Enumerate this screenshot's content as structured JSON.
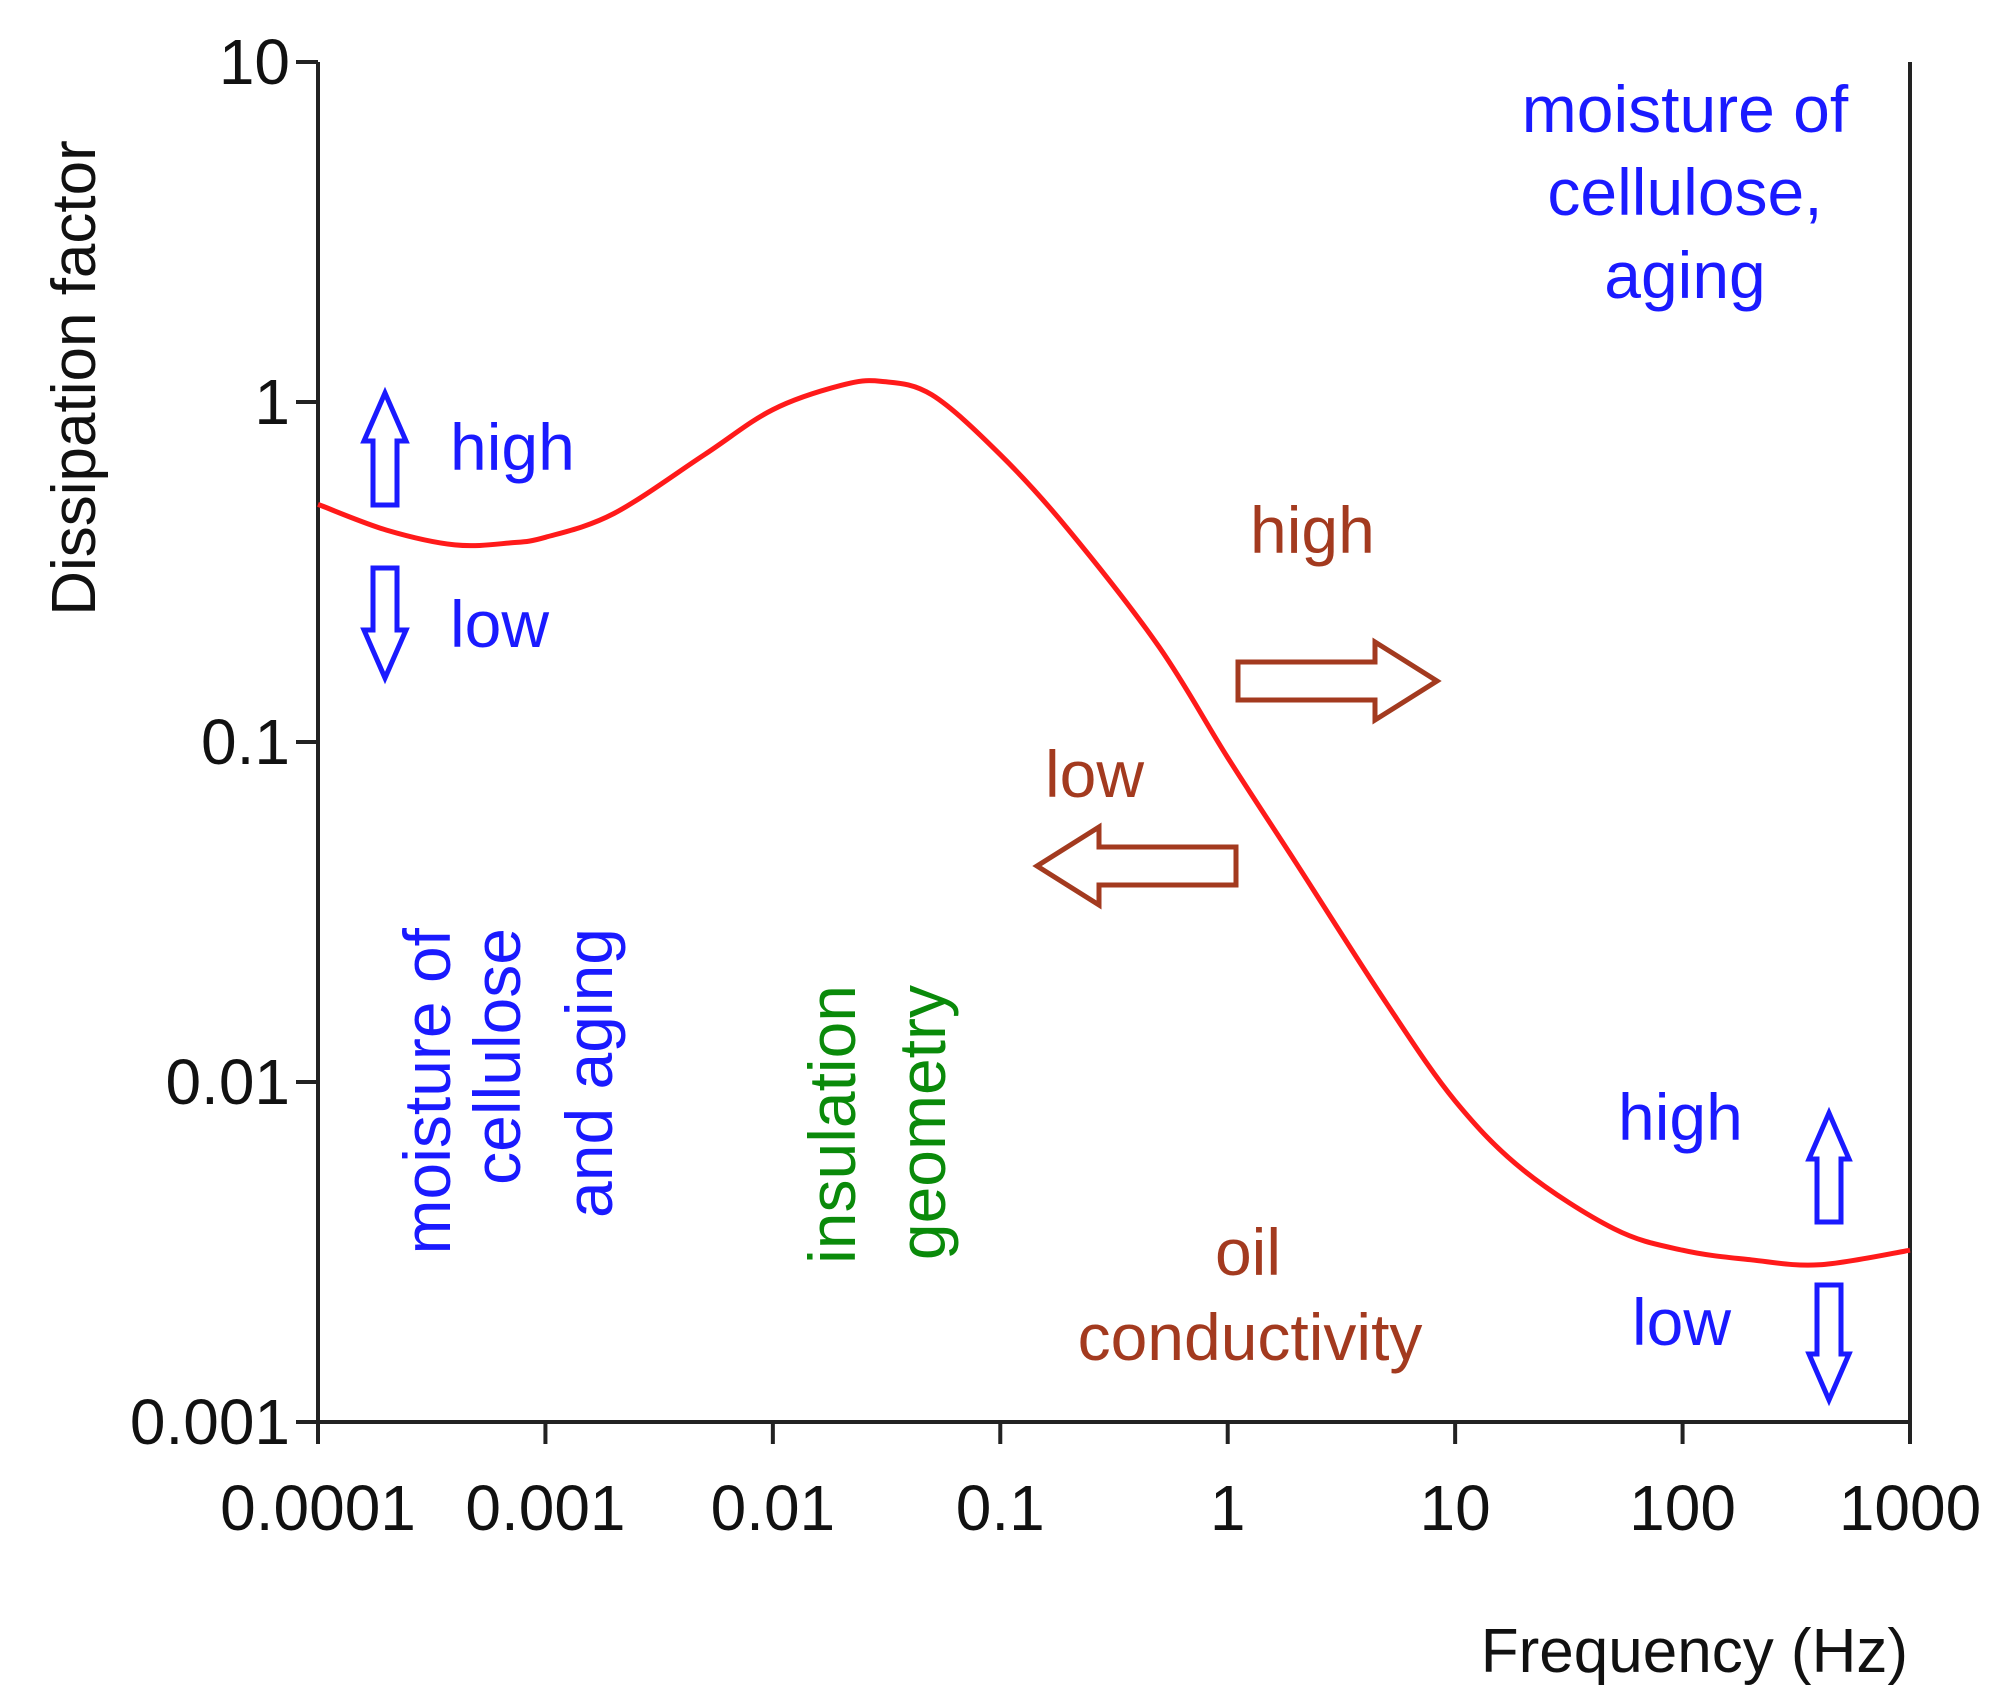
{
  "chart_data": {
    "type": "line",
    "title": "",
    "xlabel": "Frequency (Hz)",
    "ylabel": "Dissipation factor",
    "xscale": "log",
    "yscale": "log",
    "xlim": [
      0.0001,
      1000
    ],
    "ylim": [
      0.001,
      10
    ],
    "x_tick_labels": [
      "0.0001",
      "0.001",
      "0.01",
      "0.1",
      "1",
      "10",
      "100",
      "1000"
    ],
    "y_tick_labels": [
      "0.001",
      "0.01",
      "0.1",
      "1",
      "10"
    ],
    "grid": false,
    "legend": "none",
    "series": [
      {
        "name": "Dissipation factor",
        "color": "#ff1a1a",
        "x": [
          0.0001,
          0.0002,
          0.0004,
          0.0007,
          0.001,
          0.002,
          0.005,
          0.01,
          0.02,
          0.03,
          0.05,
          0.1,
          0.2,
          0.5,
          1,
          2,
          5,
          10,
          20,
          50,
          100,
          200,
          400,
          1000
        ],
        "y": [
          0.5,
          0.42,
          0.38,
          0.385,
          0.4,
          0.47,
          0.7,
          0.95,
          1.12,
          1.15,
          1.05,
          0.7,
          0.42,
          0.19,
          0.09,
          0.044,
          0.017,
          0.0088,
          0.0055,
          0.0037,
          0.0032,
          0.003,
          0.0029,
          0.0032
        ]
      }
    ],
    "annotations": [
      {
        "id": "top-right",
        "lines": [
          "moisture of",
          "cellulose,",
          "aging"
        ],
        "color": "#1a1aff"
      },
      {
        "id": "left-high",
        "text": "high",
        "color": "#1a1aff"
      },
      {
        "id": "left-low",
        "text": "low",
        "color": "#1a1aff"
      },
      {
        "id": "mid-high",
        "text": "high",
        "color": "#a33a1f"
      },
      {
        "id": "mid-low",
        "text": "low",
        "color": "#a33a1f"
      },
      {
        "id": "right-high",
        "text": "high",
        "color": "#1a1aff"
      },
      {
        "id": "right-low",
        "text": "low",
        "color": "#1a1aff"
      },
      {
        "id": "moisture-vertical",
        "lines": [
          "moisture of",
          "cellulose",
          "and aging"
        ],
        "color": "#1a1aff"
      },
      {
        "id": "insulation-vertical",
        "lines": [
          "insulation",
          "geometry"
        ],
        "color": "#0a8a0a"
      },
      {
        "id": "oil",
        "lines": [
          "oil",
          "conductivity"
        ],
        "color": "#a33a1f"
      }
    ],
    "arrows": [
      {
        "id": "left-up",
        "direction": "up",
        "color": "#1a1aff"
      },
      {
        "id": "left-down",
        "direction": "down",
        "color": "#1a1aff"
      },
      {
        "id": "mid-right",
        "direction": "right",
        "color": "#a33a1f"
      },
      {
        "id": "mid-left",
        "direction": "left",
        "color": "#a33a1f"
      },
      {
        "id": "right-up",
        "direction": "up",
        "color": "#1a1aff"
      },
      {
        "id": "right-down",
        "direction": "down",
        "color": "#1a1aff"
      }
    ]
  }
}
